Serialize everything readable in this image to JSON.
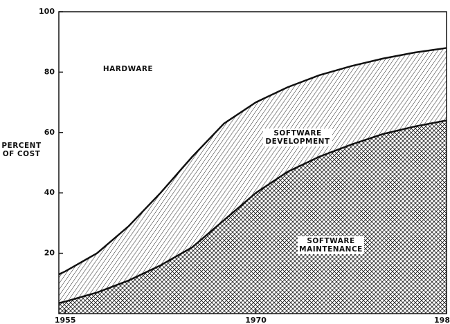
{
  "chart_data": {
    "type": "stacked-area",
    "y_label": "PERCENT OF COST",
    "x": [
      1954.5,
      1955,
      1957.5,
      1960,
      1962.5,
      1965,
      1967.5,
      1970,
      1972.5,
      1975,
      1977.5,
      1980,
      1982.5,
      1985
    ],
    "series": [
      {
        "name": "SOFTWARE MAINTENANCE",
        "color": "#111111",
        "pattern": "crosshatch",
        "values": [
          3.5,
          4,
          7,
          11,
          16,
          22,
          31,
          40,
          47,
          52,
          56,
          59.5,
          62,
          64
        ]
      },
      {
        "name": "SOFTWARE DEVELOPMENT",
        "color": "#111111",
        "pattern": "hatch",
        "values": [
          9.5,
          10,
          13,
          18,
          24,
          30,
          32,
          30,
          28,
          27,
          26,
          25,
          24.5,
          24
        ]
      },
      {
        "name": "HARDWARE",
        "color": "#ffffff",
        "pattern": "none",
        "values": [
          87,
          86,
          80,
          71,
          60,
          48,
          37,
          30,
          25,
          21,
          18,
          15.5,
          13.5,
          12
        ]
      }
    ],
    "xlim": [
      1954.5,
      1985
    ],
    "ylim": [
      0,
      100
    ],
    "xticks": [
      1955,
      1970,
      {
        "value": 1985,
        "label": "198"
      }
    ],
    "yticks": [
      20,
      40,
      60,
      80,
      100
    ],
    "grid": false
  }
}
